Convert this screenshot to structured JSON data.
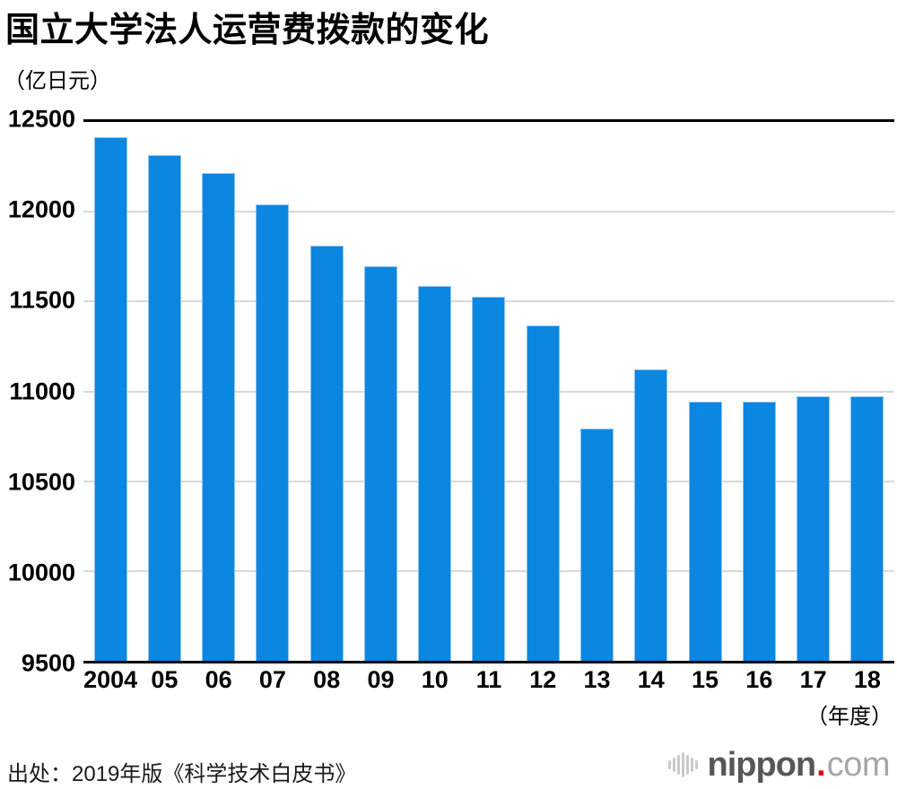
{
  "header": {
    "title": "国立大学法人运营费拨款的变化",
    "unit_label": "（亿日元）",
    "axis_unit_label": "（年度）"
  },
  "footer": {
    "source_label": "出处：2019年版《科学技术白皮书》",
    "logo": {
      "icon": "soundwave-icon",
      "main": "nippon",
      "dot": ".",
      "tld": "com"
    }
  },
  "colors": {
    "bar": "#0b86e1",
    "bar_edge": "#8fc3ee",
    "gridline": "#d9d9d9",
    "axis": "#000000",
    "logo_main": "#585757",
    "logo_dot": "#e60012",
    "logo_tld": "#a5a6a6"
  },
  "chart_data": {
    "type": "bar",
    "title": "国立大学法人运营费拨款的变化",
    "ylabel": "亿日元",
    "xlabel": "年度",
    "categories": [
      "2004",
      "05",
      "06",
      "07",
      "08",
      "09",
      "10",
      "11",
      "12",
      "13",
      "14",
      "15",
      "16",
      "17",
      "18"
    ],
    "values": [
      12415,
      12317,
      12214,
      12043,
      11813,
      11695,
      11585,
      11528,
      11366,
      10792,
      11123,
      10945,
      10945,
      10971,
      10971
    ],
    "ylim": [
      9500,
      12500
    ],
    "yticks": [
      9500,
      10000,
      10500,
      11000,
      11500,
      12000,
      12500
    ],
    "grid": true,
    "legend": false,
    "source": "2019年版《科学技术白皮书》"
  }
}
